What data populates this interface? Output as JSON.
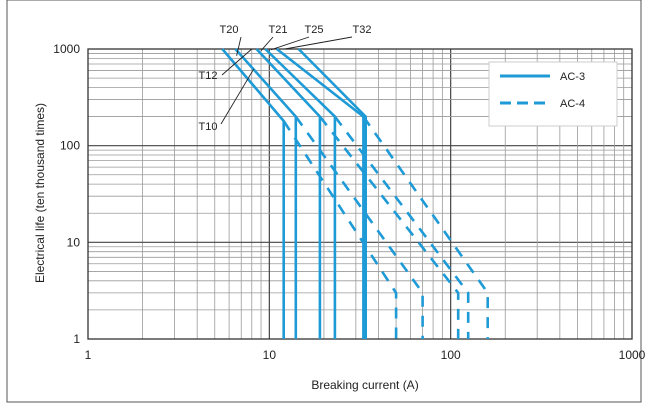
{
  "chart_data": {
    "type": "line",
    "xlabel": "Breaking current (A)",
    "ylabel": "Electrical life (ten thousand times)",
    "x_scale": "log",
    "y_scale": "log",
    "xlim": [
      1,
      1000
    ],
    "ylim": [
      1,
      1000
    ],
    "x_ticks": [
      "1",
      "10",
      "100",
      "1000"
    ],
    "y_ticks": [
      "1",
      "10",
      "100",
      "1000"
    ],
    "grid": true,
    "legend_position": "top-right",
    "legend": [
      {
        "label": "AC-3",
        "style": "solid"
      },
      {
        "label": "AC-4",
        "style": "dashed"
      }
    ],
    "line_color": "#1e9ad6",
    "series": [
      {
        "name": "T10",
        "ac3": [
          [
            5.5,
            1000
          ],
          [
            12,
            180
          ],
          [
            12,
            1
          ]
        ],
        "ac4": [
          [
            12,
            180
          ],
          [
            50,
            3
          ],
          [
            50,
            1
          ]
        ]
      },
      {
        "name": "T12",
        "ac3": [
          [
            6.5,
            1000
          ],
          [
            14,
            200
          ],
          [
            14,
            1
          ]
        ],
        "ac4": [
          [
            14,
            200
          ],
          [
            70,
            3
          ],
          [
            70,
            1
          ]
        ]
      },
      {
        "name": "T20",
        "ac3": [
          [
            8.5,
            1000
          ],
          [
            19,
            200
          ],
          [
            19,
            1
          ]
        ],
        "ac4": [
          [
            19,
            200
          ],
          [
            110,
            3
          ],
          [
            110,
            1
          ]
        ]
      },
      {
        "name": "T21",
        "ac3": [
          [
            9.5,
            1000
          ],
          [
            23,
            200
          ],
          [
            23,
            1
          ]
        ],
        "ac4": [
          [
            23,
            200
          ],
          [
            125,
            3
          ],
          [
            125,
            1
          ]
        ]
      },
      {
        "name": "T25",
        "ac3": [
          [
            11,
            1000
          ],
          [
            33,
            200
          ],
          [
            33,
            1
          ]
        ],
        "ac4": [
          [
            33,
            200
          ],
          [
            160,
            3
          ],
          [
            160,
            1
          ]
        ]
      },
      {
        "name": "T32",
        "ac3": [
          [
            14.5,
            1000
          ],
          [
            34,
            200
          ],
          [
            34,
            1
          ]
        ],
        "ac4": []
      }
    ]
  }
}
